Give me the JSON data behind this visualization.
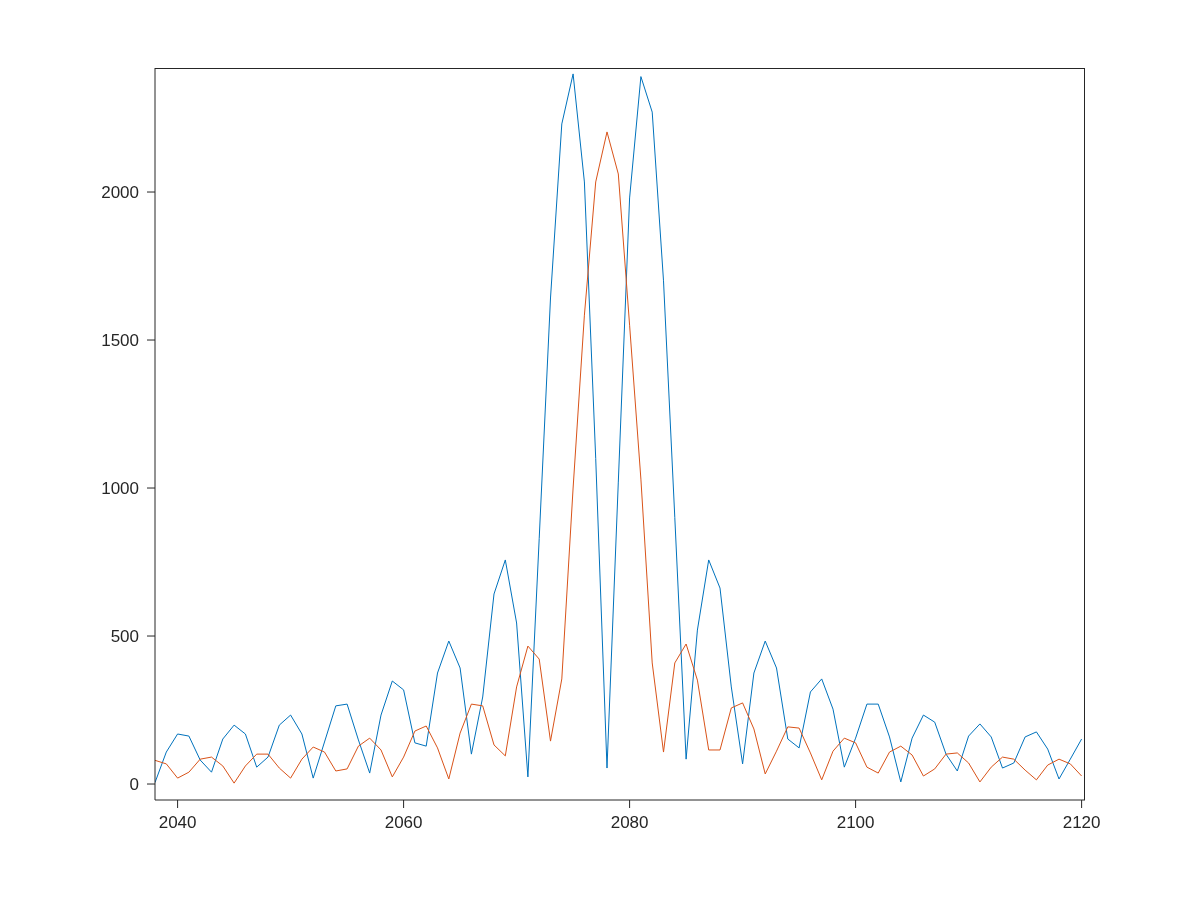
{
  "chart_data": {
    "type": "line",
    "x": [
      2038,
      2039,
      2040,
      2041,
      2042,
      2043,
      2044,
      2045,
      2046,
      2047,
      2048,
      2049,
      2050,
      2051,
      2052,
      2053,
      2054,
      2055,
      2056,
      2057,
      2058,
      2059,
      2060,
      2061,
      2062,
      2063,
      2064,
      2065,
      2066,
      2067,
      2068,
      2069,
      2070,
      2071,
      2072,
      2073,
      2074,
      2075,
      2076,
      2077,
      2078,
      2079,
      2080,
      2081,
      2082,
      2083,
      2084,
      2085,
      2086,
      2087,
      2088,
      2089,
      2090,
      2091,
      2092,
      2093,
      2094,
      2095,
      2096,
      2097,
      2098,
      2099,
      2100,
      2101,
      2102,
      2103,
      2104,
      2105,
      2106,
      2107,
      2108,
      2109,
      2110,
      2111,
      2112,
      2113,
      2114,
      2115,
      2116,
      2117,
      2118,
      2119,
      2120
    ],
    "series": [
      {
        "color": "#0072bd",
        "values": [
          5,
          108,
          169,
          162,
          81,
          40,
          152,
          199,
          169,
          57,
          91,
          199,
          233,
          169,
          20,
          142,
          264,
          270,
          149,
          37,
          233,
          348,
          318,
          139,
          128,
          375,
          483,
          392,
          101,
          294,
          642,
          757,
          544,
          24,
          830,
          1642,
          2230,
          2399,
          2034,
          1100,
          54,
          1020,
          1980,
          2390,
          2270,
          1700,
          900,
          84,
          520,
          757,
          662,
          328,
          68,
          375,
          483,
          392,
          152,
          122,
          311,
          355,
          253,
          57,
          155,
          270,
          270,
          159,
          7,
          155,
          233,
          209,
          101,
          44,
          162,
          203,
          159,
          54,
          71,
          159,
          176,
          118,
          17,
          84,
          152
        ]
      },
      {
        "color": "#d95319",
        "values": [
          80,
          68,
          20,
          40,
          84,
          91,
          61,
          3,
          61,
          101,
          101,
          54,
          20,
          84,
          125,
          108,
          44,
          51,
          128,
          155,
          115,
          24,
          91,
          179,
          196,
          122,
          17,
          172,
          270,
          264,
          132,
          95,
          328,
          466,
          422,
          145,
          355,
          1000,
          1584,
          2034,
          2203,
          2061,
          1550,
          1030,
          409,
          108,
          409,
          473,
          351,
          115,
          115,
          257,
          274,
          186,
          34,
          111,
          193,
          189,
          105,
          14,
          111,
          155,
          139,
          57,
          37,
          108,
          128,
          98,
          27,
          51,
          101,
          105,
          71,
          7,
          57,
          91,
          84,
          47,
          14,
          64,
          84,
          68,
          27
        ]
      }
    ],
    "xlim": [
      2038,
      2120.3
    ],
    "xticks": [
      2040,
      2060,
      2080,
      2100,
      2120
    ],
    "ylim": [
      -54,
      2419
    ],
    "yticks": [
      0,
      500,
      1000,
      1500,
      2000
    ],
    "grid": false,
    "marker": "none",
    "line_style": "solid"
  }
}
